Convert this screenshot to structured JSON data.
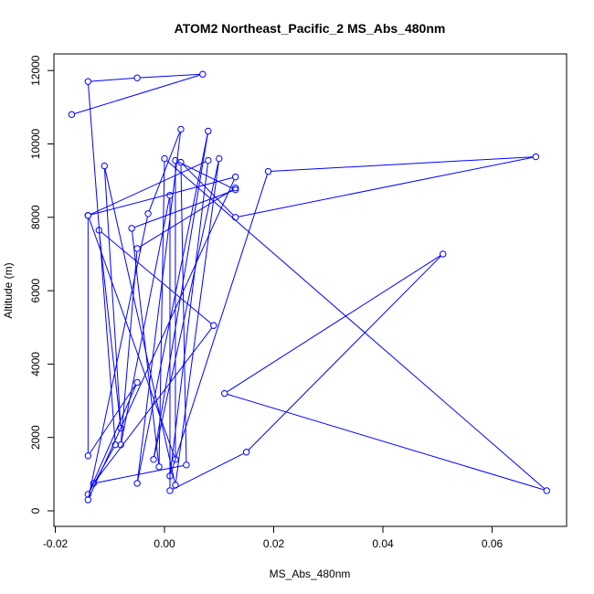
{
  "chart_data": {
    "type": "line",
    "title": "ATOM2 Northeast_Pacific_2 MS_Abs_480nm",
    "xlabel": "MS_Abs_480nm",
    "ylabel": "Altitude (m)",
    "xlim": [
      -0.02,
      0.07
    ],
    "ylim": [
      0,
      12000
    ],
    "x_ticks": [
      -0.02,
      0.0,
      0.02,
      0.04,
      0.06
    ],
    "x_tick_labels": [
      "-0.02",
      "0.00",
      "0.02",
      "0.04",
      "0.06"
    ],
    "y_ticks": [
      0,
      2000,
      4000,
      6000,
      8000,
      10000,
      12000
    ],
    "y_tick_labels": [
      "0",
      "2000",
      "4000",
      "6000",
      "8000",
      "10000",
      "12000"
    ],
    "grid": false,
    "series": [
      {
        "color": "#0000ff",
        "marker": "open-circle",
        "points": [
          {
            "x": -0.017,
            "y": 10800
          },
          {
            "x": 0.007,
            "y": 11900
          },
          {
            "x": -0.005,
            "y": 11800
          },
          {
            "x": -0.014,
            "y": 11700
          },
          {
            "x": -0.009,
            "y": 1800
          },
          {
            "x": -0.014,
            "y": 450
          },
          {
            "x": -0.005,
            "y": 3500
          },
          {
            "x": -0.014,
            "y": 1500
          },
          {
            "x": -0.014,
            "y": 8050
          },
          {
            "x": 0.013,
            "y": 9100
          },
          {
            "x": -0.014,
            "y": 300
          },
          {
            "x": -0.003,
            "y": 8100
          },
          {
            "x": 0.003,
            "y": 10400
          },
          {
            "x": -0.005,
            "y": 750
          },
          {
            "x": 0.008,
            "y": 10350
          },
          {
            "x": -0.002,
            "y": 1400
          },
          {
            "x": 0.01,
            "y": 9600
          },
          {
            "x": 0.002,
            "y": 700
          },
          {
            "x": -0.011,
            "y": 9400
          },
          {
            "x": -0.008,
            "y": 2250
          },
          {
            "x": -0.012,
            "y": 7650
          },
          {
            "x": 0.009,
            "y": 5050
          },
          {
            "x": -0.013,
            "y": 750
          },
          {
            "x": 0.004,
            "y": 1250
          },
          {
            "x": 0.003,
            "y": 9500
          },
          {
            "x": 0.013,
            "y": 8000
          },
          {
            "x": 0.068,
            "y": 9650
          },
          {
            "x": 0.019,
            "y": 9250
          },
          {
            "x": 0.001,
            "y": 950
          },
          {
            "x": 0.008,
            "y": 9550
          },
          {
            "x": -0.014,
            "y": 8050
          },
          {
            "x": 0.002,
            "y": 1400
          },
          {
            "x": 0.002,
            "y": 9550
          },
          {
            "x": 0.013,
            "y": 8750
          },
          {
            "x": -0.006,
            "y": 7700
          },
          {
            "x": -0.001,
            "y": 1200
          },
          {
            "x": 0.0,
            "y": 9600
          },
          {
            "x": 0.07,
            "y": 550
          },
          {
            "x": 0.011,
            "y": 3200
          },
          {
            "x": 0.051,
            "y": 7000
          },
          {
            "x": 0.015,
            "y": 1600
          },
          {
            "x": 0.001,
            "y": 550
          },
          {
            "x": 0.001,
            "y": 8600
          },
          {
            "x": -0.008,
            "y": 1800
          },
          {
            "x": -0.005,
            "y": 7150
          },
          {
            "x": 0.013,
            "y": 8800
          }
        ]
      }
    ]
  }
}
